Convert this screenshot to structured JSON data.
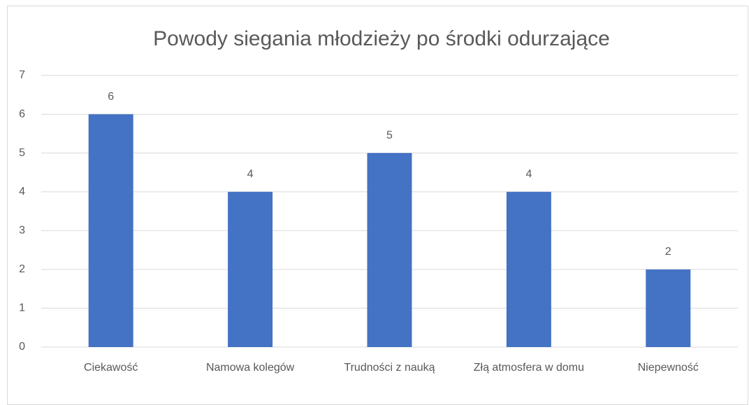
{
  "chart_data": {
    "type": "bar",
    "title": "Powody siegania młodzieży po środki odurzające",
    "categories": [
      "Ciekawość",
      "Namowa kolegów",
      "Trudności z nauką",
      "Złą atmosfera w domu",
      "Niepewność"
    ],
    "values": [
      6,
      4,
      5,
      4,
      2
    ],
    "color": "#4472c4",
    "ylim": [
      0,
      7
    ],
    "yticks": [
      0,
      1,
      2,
      3,
      4,
      5,
      6,
      7
    ],
    "grid": true
  }
}
